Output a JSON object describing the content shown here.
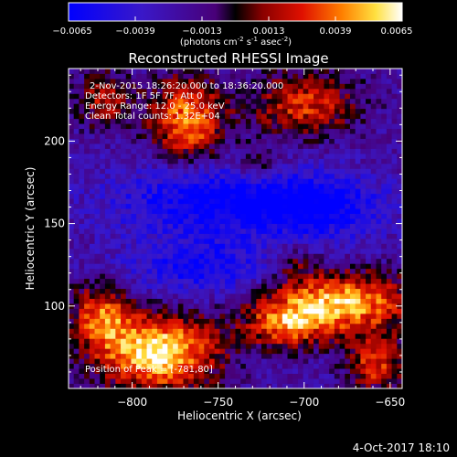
{
  "chart_data": {
    "type": "heatmap",
    "title": "Reconstructed RHESSI Image",
    "xlabel": "Heliocentric X (arcsec)",
    "ylabel": "Heliocentric Y (arcsec)",
    "xlim": [
      -837,
      -643
    ],
    "ylim": [
      50,
      244
    ],
    "xticks": [
      -800,
      -750,
      -700,
      -650
    ],
    "yticks": [
      100,
      150,
      200
    ],
    "colorbar": {
      "ticks": [
        -0.0065,
        -0.0039,
        -0.0013,
        0.0013,
        0.0039,
        0.0065
      ],
      "tick_labels": [
        "−0.0065",
        "−0.0039",
        "−0.0013",
        "0.0013",
        "0.0039",
        "0.0065"
      ],
      "range": [
        -0.0065,
        0.0065
      ],
      "unit_base": "(photons cm",
      "unit_exp1": "-2",
      "unit_mid": " s",
      "unit_exp2": "-1",
      "unit_mid2": " asec",
      "unit_exp3": "-2",
      "unit_end": ")"
    },
    "annotations": {
      "time": "2-Nov-2015 18:26:20.000 to 18:36:20.000",
      "detectors": "Detectors: 1F 5F 7F, Att 0",
      "energy": "Energy Range: 12.0 - 25.0 keV",
      "method": "Clean    Total counts: 1.32E+04",
      "peak": "Position of Peak = [-781,80]"
    },
    "blobs": [
      {
        "x": -785,
        "y": 72,
        "amp": 0.0085,
        "sx": 24,
        "sy": 16
      },
      {
        "x": -818,
        "y": 95,
        "amp": 0.0055,
        "sx": 12,
        "sy": 14
      },
      {
        "x": -680,
        "y": 102,
        "amp": 0.0075,
        "sx": 30,
        "sy": 13
      },
      {
        "x": -712,
        "y": 88,
        "amp": 0.0045,
        "sx": 16,
        "sy": 10
      },
      {
        "x": -658,
        "y": 65,
        "amp": 0.005,
        "sx": 12,
        "sy": 12
      },
      {
        "x": -768,
        "y": 212,
        "amp": 0.0065,
        "sx": 15,
        "sy": 18
      },
      {
        "x": -815,
        "y": 225,
        "amp": 0.004,
        "sx": 12,
        "sy": 12
      },
      {
        "x": -700,
        "y": 222,
        "amp": 0.0048,
        "sx": 22,
        "sy": 14
      },
      {
        "x": -727,
        "y": 186,
        "amp": 0.003,
        "sx": 10,
        "sy": 8
      },
      {
        "x": -705,
        "y": 127,
        "amp": 0.0022,
        "sx": 9,
        "sy": 8
      },
      {
        "x": -755,
        "y": 165,
        "amp": -0.0045,
        "sx": 40,
        "sy": 16
      },
      {
        "x": -690,
        "y": 160,
        "amp": -0.004,
        "sx": 28,
        "sy": 14
      },
      {
        "x": -760,
        "y": 123,
        "amp": -0.0035,
        "sx": 32,
        "sy": 12
      }
    ],
    "base_level": -0.0022,
    "noise": 0.0014,
    "grid_n": 64
  },
  "footer": {
    "date": "4-Oct-2017 18:10"
  }
}
